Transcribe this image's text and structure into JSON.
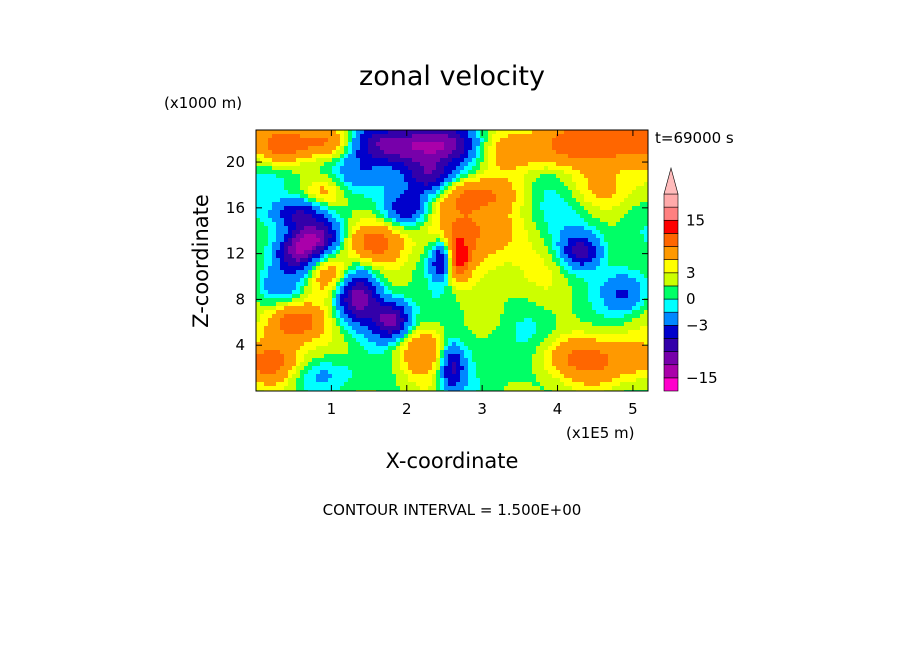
{
  "chart_data": {
    "type": "heatmap",
    "title": "zonal velocity",
    "xlabel": "X-coordinate",
    "ylabel": "Z-coordinate",
    "x_units": "(x1E5 m)",
    "y_units": "(x1000 m)",
    "time_label": "t=69000 s",
    "footer": "CONTOUR INTERVAL = 1.500E+00",
    "xlim": [
      0,
      5.2
    ],
    "ylim": [
      0,
      22.8
    ],
    "x_ticks": [
      1,
      2,
      3,
      4,
      5
    ],
    "y_ticks": [
      4,
      8,
      12,
      16,
      20
    ],
    "colorbar": {
      "tick_labels": [
        "15",
        "3",
        "0",
        "-3",
        "-15"
      ],
      "tick_values": [
        15,
        3,
        0,
        -3,
        -15
      ],
      "levels": [
        -18,
        -15,
        -12,
        -9,
        -6,
        -3,
        -1.5,
        0,
        1.5,
        3,
        6,
        9,
        12,
        15,
        18
      ],
      "colors": [
        "#ff00cc",
        "#aa00aa",
        "#7700aa",
        "#3300aa",
        "#0000cc",
        "#0088ff",
        "#00ffff",
        "#00ff66",
        "#ccff00",
        "#ffff00",
        "#ff9900",
        "#ff6600",
        "#ff0000",
        "#ff8080",
        "#ffaaaa",
        "#ffbbbb"
      ]
    },
    "grid": false,
    "blobs": [
      {
        "x": 0.35,
        "z": 21.5,
        "sx": 0.25,
        "sz": 1.3,
        "v": 8
      },
      {
        "x": 0.9,
        "z": 21.8,
        "sx": 0.3,
        "sz": 1.0,
        "v": 6
      },
      {
        "x": 1.5,
        "z": 21.7,
        "sx": 0.25,
        "sz": 1.2,
        "v": -7
      },
      {
        "x": 2.0,
        "z": 21.5,
        "sx": 0.3,
        "sz": 1.3,
        "v": -12
      },
      {
        "x": 2.55,
        "z": 21.5,
        "sx": 0.3,
        "sz": 1.3,
        "v": -11
      },
      {
        "x": 4.7,
        "z": 21.8,
        "sx": 0.55,
        "sz": 1.6,
        "v": 9
      },
      {
        "x": 3.6,
        "z": 21.0,
        "sx": 0.5,
        "sz": 1.3,
        "v": 4
      },
      {
        "x": 0.2,
        "z": 18.5,
        "sx": 0.22,
        "sz": 1.3,
        "v": -3
      },
      {
        "x": 0.55,
        "z": 15.5,
        "sx": 0.25,
        "sz": 1.0,
        "v": -10
      },
      {
        "x": 0.9,
        "z": 17.3,
        "sx": 0.2,
        "sz": 1.0,
        "v": 5
      },
      {
        "x": 1.3,
        "z": 19.0,
        "sx": 0.25,
        "sz": 1.4,
        "v": -6
      },
      {
        "x": 2.3,
        "z": 18.6,
        "sx": 0.22,
        "sz": 1.2,
        "v": -11
      },
      {
        "x": 2.0,
        "z": 16.0,
        "sx": 0.2,
        "sz": 1.0,
        "v": -8
      },
      {
        "x": 0.8,
        "z": 13.4,
        "sx": 0.22,
        "sz": 1.0,
        "v": -12
      },
      {
        "x": 0.55,
        "z": 12.0,
        "sx": 0.2,
        "sz": 1.2,
        "v": -13
      },
      {
        "x": 1.55,
        "z": 13.0,
        "sx": 0.3,
        "sz": 1.2,
        "v": 7
      },
      {
        "x": 1.0,
        "z": 10.2,
        "sx": 0.22,
        "sz": 1.3,
        "v": 6
      },
      {
        "x": 1.35,
        "z": 8.2,
        "sx": 0.2,
        "sz": 1.6,
        "v": -14
      },
      {
        "x": 1.8,
        "z": 6.2,
        "sx": 0.18,
        "sz": 1.2,
        "v": -13
      },
      {
        "x": 2.5,
        "z": 11.5,
        "sx": 0.12,
        "sz": 1.2,
        "v": -14
      },
      {
        "x": 2.65,
        "z": 11.5,
        "sx": 0.12,
        "sz": 1.3,
        "v": 13
      },
      {
        "x": 3.0,
        "z": 14.0,
        "sx": 0.4,
        "sz": 2.0,
        "v": 7
      },
      {
        "x": 2.9,
        "z": 17.2,
        "sx": 0.4,
        "sz": 1.0,
        "v": 6
      },
      {
        "x": 0.5,
        "z": 6.0,
        "sx": 0.25,
        "sz": 1.2,
        "v": 9
      },
      {
        "x": 0.35,
        "z": 9.2,
        "sx": 0.2,
        "sz": 1.0,
        "v": -4
      },
      {
        "x": 0.2,
        "z": 2.5,
        "sx": 0.3,
        "sz": 1.2,
        "v": 7
      },
      {
        "x": 0.9,
        "z": 1.5,
        "sx": 0.35,
        "sz": 1.0,
        "v": -3
      },
      {
        "x": 2.6,
        "z": 2.0,
        "sx": 0.12,
        "sz": 1.5,
        "v": -10
      },
      {
        "x": 2.2,
        "z": 3.5,
        "sx": 0.25,
        "sz": 1.5,
        "v": 5
      },
      {
        "x": 3.4,
        "z": 6.0,
        "sx": 0.45,
        "sz": 2.0,
        "v": -1
      },
      {
        "x": 3.6,
        "z": 10.0,
        "sx": 0.5,
        "sz": 2.5,
        "v": 1
      },
      {
        "x": 4.1,
        "z": 14.0,
        "sx": 0.5,
        "sz": 2.0,
        "v": -2.5
      },
      {
        "x": 4.3,
        "z": 12.2,
        "sx": 0.18,
        "sz": 1.0,
        "v": -9
      },
      {
        "x": 4.9,
        "z": 8.5,
        "sx": 0.2,
        "sz": 1.3,
        "v": -7
      },
      {
        "x": 4.8,
        "z": 2.5,
        "sx": 0.45,
        "sz": 1.5,
        "v": 5
      },
      {
        "x": 4.1,
        "z": 3.0,
        "sx": 0.4,
        "sz": 1.2,
        "v": 4
      },
      {
        "x": 3.8,
        "z": 17.0,
        "sx": 0.6,
        "sz": 1.5,
        "v": -1
      },
      {
        "x": 4.6,
        "z": 17.5,
        "sx": 0.4,
        "sz": 1.3,
        "v": 3
      },
      {
        "x": 3.3,
        "z": 3.0,
        "sx": 0.35,
        "sz": 1.5,
        "v": -1.5
      }
    ]
  }
}
